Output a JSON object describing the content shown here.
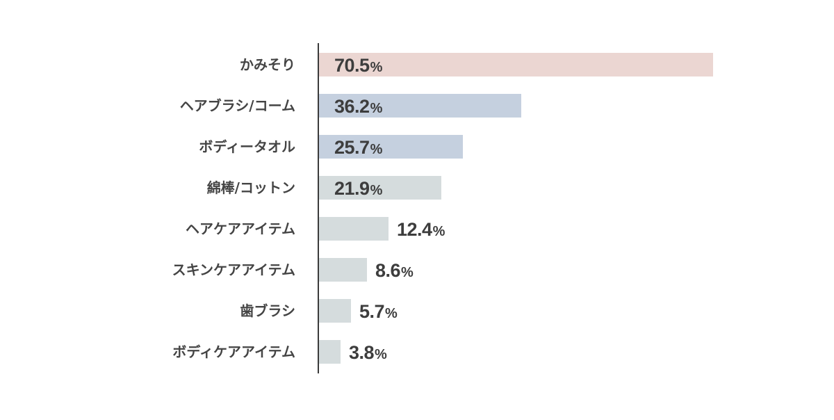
{
  "chart_data": {
    "type": "bar",
    "orientation": "horizontal",
    "title": "",
    "xlabel": "",
    "ylabel": "",
    "xlim": [
      0,
      70.5
    ],
    "grid": false,
    "legend": null,
    "unit": "%",
    "categories": [
      "かみそり",
      "ヘアブラシ/コーム",
      "ボディータオル",
      "綿棒/コットン",
      "ヘアケアアイテム",
      "スキンケアアイテム",
      "歯ブラシ",
      "ボディケアアイテム"
    ],
    "values": [
      70.5,
      36.2,
      25.7,
      21.9,
      12.4,
      8.6,
      5.7,
      3.8
    ],
    "value_labels": [
      "70.5",
      "36.2",
      "25.7",
      "21.9",
      "12.4",
      "8.6",
      "5.7",
      "3.8"
    ],
    "bar_colors": [
      "#ebd6d2",
      "#c5d0df",
      "#c5d0df",
      "#d5dcdd",
      "#d5dcdd",
      "#d5dcdd",
      "#d5dcdd",
      "#d5dcdd"
    ],
    "label_inside": [
      true,
      true,
      true,
      true,
      false,
      false,
      false,
      false
    ]
  },
  "axis_color": "#3a3a3a",
  "text_color": "#444444"
}
